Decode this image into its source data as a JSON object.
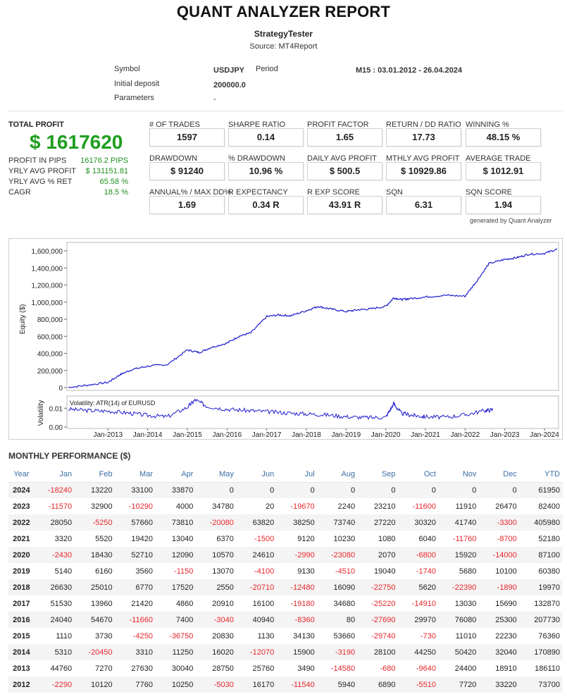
{
  "report": {
    "title": "QUANT ANALYZER REPORT",
    "strategy": "StrategyTester",
    "source": "Source: MT4Report"
  },
  "info": {
    "symbol_label": "Symbol",
    "symbol_value": "USDJPY",
    "period_label": "Period",
    "period_value": "M15 : 03.01.2012 - 26.04.2024",
    "deposit_label": "Initial deposit",
    "deposit_value": "200000.0",
    "params_label": "Parameters",
    "params_value": "-"
  },
  "summary": {
    "total_profit_label": "TOTAL PROFIT",
    "total_profit_value": "$ 1617620",
    "rows": [
      {
        "label": "PROFIT IN PIPS",
        "value": "16176.2 PIPS"
      },
      {
        "label": "YRLY AVG PROFIT",
        "value": "$ 131151.81"
      },
      {
        "label": "YRLY AVG % RET",
        "value": "65.58 %"
      },
      {
        "label": "CAGR",
        "value": "18.5 %"
      }
    ]
  },
  "stats": [
    {
      "label": "# OF TRADES",
      "value": "1597"
    },
    {
      "label": "SHARPE RATIO",
      "value": "0.14"
    },
    {
      "label": "PROFIT FACTOR",
      "value": "1.65"
    },
    {
      "label": "RETURN / DD RATIO",
      "value": "17.73"
    },
    {
      "label": "WINNING %",
      "value": "48.15 %"
    },
    {
      "label": "DRAWDOWN",
      "value": "$ 91240"
    },
    {
      "label": "% DRAWDOWN",
      "value": "10.96 %"
    },
    {
      "label": "DAILY AVG PROFIT",
      "value": "$ 500.5"
    },
    {
      "label": "MTHLY AVG PROFIT",
      "value": "$ 10929.86"
    },
    {
      "label": "AVERAGE TRADE",
      "value": "$ 1012.91"
    },
    {
      "label": "ANNUAL% / MAX DD%",
      "value": "1.69"
    },
    {
      "label": "R EXPECTANCY",
      "value": "0.34 R"
    },
    {
      "label": "R EXP SCORE",
      "value": "43.91 R"
    },
    {
      "label": "SQN",
      "value": "6.31"
    },
    {
      "label": "SQN SCORE",
      "value": "1.94"
    }
  ],
  "generated_by": "generated by Quant Analyzer",
  "chart_data": [
    {
      "type": "line",
      "title": "",
      "ylabel": "Equity ($)",
      "ylim": [
        0,
        1600000
      ],
      "yticks": [
        "0",
        "200,000",
        "400,000",
        "600,000",
        "800,000",
        "1,000,000",
        "1,200,000",
        "1,400,000",
        "1,600,000"
      ],
      "series": [
        {
          "name": "Equity",
          "color": "#1c1ccc",
          "x": [
            2012.0,
            2012.5,
            2013.0,
            2013.3,
            2013.6,
            2014.0,
            2014.5,
            2015.0,
            2015.3,
            2015.6,
            2016.0,
            2016.3,
            2016.6,
            2017.0,
            2017.3,
            2017.6,
            2018.0,
            2018.3,
            2018.6,
            2019.0,
            2019.3,
            2019.6,
            2020.0,
            2020.2,
            2020.4,
            2020.6,
            2021.0,
            2021.5,
            2022.0,
            2022.3,
            2022.6,
            2023.0,
            2023.3,
            2023.6,
            2024.0,
            2024.32
          ],
          "values": [
            0,
            30000,
            60000,
            150000,
            210000,
            250000,
            270000,
            440000,
            410000,
            470000,
            520000,
            600000,
            640000,
            830000,
            850000,
            840000,
            900000,
            950000,
            920000,
            890000,
            910000,
            920000,
            950000,
            1050000,
            1030000,
            1040000,
            1060000,
            1080000,
            1070000,
            1250000,
            1450000,
            1500000,
            1520000,
            1560000,
            1570000,
            1620000
          ]
        }
      ]
    },
    {
      "type": "line",
      "title": "Volatility: ATR(14) of EURUSD",
      "ylabel": "Volatility",
      "ylim": [
        0,
        0.015
      ],
      "yticks": [
        "0.00",
        "0.01"
      ],
      "xlabels": [
        "Jan-2013",
        "Jan-2014",
        "Jan-2015",
        "Jan-2016",
        "Jan-2017",
        "Jan-2018",
        "Jan-2019",
        "Jan-2020",
        "Jan-2021",
        "Jan-2022",
        "Jan-2023",
        "Jan-2024"
      ],
      "series": [
        {
          "name": "ATR(14)",
          "color": "#1c1ccc",
          "x": [
            2012.0,
            2012.5,
            2013.0,
            2013.5,
            2014.0,
            2014.5,
            2015.0,
            2015.2,
            2015.5,
            2016.0,
            2016.5,
            2017.0,
            2017.5,
            2018.0,
            2018.5,
            2019.0,
            2019.5,
            2020.0,
            2020.2,
            2020.4,
            2020.7,
            2021.0,
            2021.5,
            2022.0,
            2022.5,
            2022.7
          ],
          "values": [
            0.0095,
            0.0088,
            0.0085,
            0.0075,
            0.0062,
            0.0055,
            0.0105,
            0.0145,
            0.011,
            0.0095,
            0.0088,
            0.0082,
            0.0075,
            0.007,
            0.0065,
            0.0055,
            0.005,
            0.0052,
            0.0125,
            0.0072,
            0.0062,
            0.0055,
            0.0052,
            0.0065,
            0.0088,
            0.0092
          ]
        }
      ]
    }
  ],
  "monthly": {
    "title": "MONTHLY PERFORMANCE ($)",
    "headers": [
      "Year",
      "Jan",
      "Feb",
      "Mar",
      "Apr",
      "May",
      "Jun",
      "Jul",
      "Aug",
      "Sep",
      "Oct",
      "Nov",
      "Dec",
      "YTD"
    ],
    "rows": [
      [
        "2024",
        "-18240",
        "13220",
        "33100",
        "33870",
        "0",
        "0",
        "0",
        "0",
        "0",
        "0",
        "0",
        "0",
        "61950"
      ],
      [
        "2023",
        "-11570",
        "32900",
        "-10290",
        "4000",
        "34780",
        "20",
        "-19670",
        "2240",
        "23210",
        "-11600",
        "11910",
        "26470",
        "82400"
      ],
      [
        "2022",
        "28050",
        "-5250",
        "57660",
        "73810",
        "-20080",
        "63820",
        "38250",
        "73740",
        "27220",
        "30320",
        "41740",
        "-3300",
        "405980"
      ],
      [
        "2021",
        "3320",
        "5520",
        "19420",
        "13040",
        "6370",
        "-1500",
        "9120",
        "10230",
        "1080",
        "6040",
        "-11760",
        "-8700",
        "52180"
      ],
      [
        "2020",
        "-2430",
        "18430",
        "52710",
        "12090",
        "10570",
        "24610",
        "-2990",
        "-23080",
        "2070",
        "-6800",
        "15920",
        "-14000",
        "87100"
      ],
      [
        "2019",
        "5140",
        "6160",
        "3560",
        "-1150",
        "13070",
        "-4100",
        "9130",
        "-4510",
        "19040",
        "-1740",
        "5680",
        "10100",
        "60380"
      ],
      [
        "2018",
        "26630",
        "25010",
        "6770",
        "17520",
        "2550",
        "-20710",
        "-12480",
        "16090",
        "-22750",
        "5620",
        "-22390",
        "-1890",
        "19970"
      ],
      [
        "2017",
        "51530",
        "13960",
        "21420",
        "4860",
        "20910",
        "16100",
        "-19180",
        "34680",
        "-25220",
        "-14910",
        "13030",
        "15690",
        "132870"
      ],
      [
        "2016",
        "24040",
        "54670",
        "-11660",
        "7400",
        "-3040",
        "40940",
        "-8360",
        "80",
        "-27690",
        "29970",
        "76080",
        "25300",
        "207730"
      ],
      [
        "2015",
        "1110",
        "3730",
        "-4250",
        "-36750",
        "20830",
        "1130",
        "34130",
        "53660",
        "-29740",
        "-730",
        "11010",
        "22230",
        "76360"
      ],
      [
        "2014",
        "5310",
        "-20450",
        "3310",
        "11250",
        "16020",
        "-12070",
        "15900",
        "-3190",
        "28100",
        "44250",
        "50420",
        "32040",
        "170890"
      ],
      [
        "2013",
        "44760",
        "7270",
        "27630",
        "30040",
        "28750",
        "25760",
        "3490",
        "-14580",
        "-680",
        "-9640",
        "24400",
        "18910",
        "186110"
      ],
      [
        "2012",
        "-2290",
        "10120",
        "7760",
        "10250",
        "-5030",
        "16170",
        "-11540",
        "5940",
        "6890",
        "-5510",
        "7720",
        "33220",
        "73700"
      ]
    ]
  }
}
